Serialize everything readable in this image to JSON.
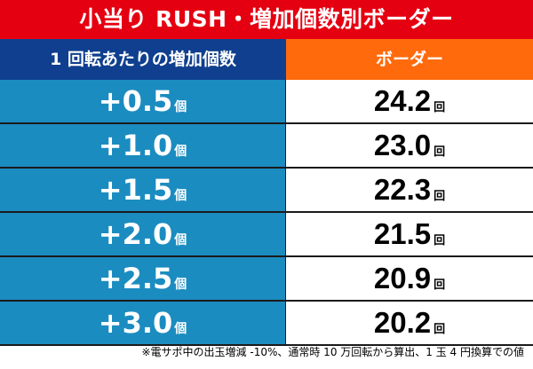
{
  "title": "小当り RUSH・増加個数別ボーダー",
  "columns": {
    "left": "1 回転あたりの増加個数",
    "right": "ボーダー"
  },
  "rows": [
    {
      "increase": "+0.5",
      "increase_unit": "個",
      "border": "24.2",
      "border_unit": "回"
    },
    {
      "increase": "+1.0",
      "increase_unit": "個",
      "border": "23.0",
      "border_unit": "回"
    },
    {
      "increase": "+1.5",
      "increase_unit": "個",
      "border": "22.3",
      "border_unit": "回"
    },
    {
      "increase": "+2.0",
      "increase_unit": "個",
      "border": "21.5",
      "border_unit": "回"
    },
    {
      "increase": "+2.5",
      "increase_unit": "個",
      "border": "20.9",
      "border_unit": "回"
    },
    {
      "increase": "+3.0",
      "increase_unit": "個",
      "border": "20.2",
      "border_unit": "回"
    }
  ],
  "footnote": "※電サポ中の出玉増減 -10%、通常時 10 万回転から算出、1 玉 4 円換算での値",
  "colors": {
    "title_bg": "#e50011",
    "left_header_bg": "#0f3f8e",
    "right_header_bg": "#ff6a0d",
    "left_cell_bg": "#1b8cc0"
  }
}
